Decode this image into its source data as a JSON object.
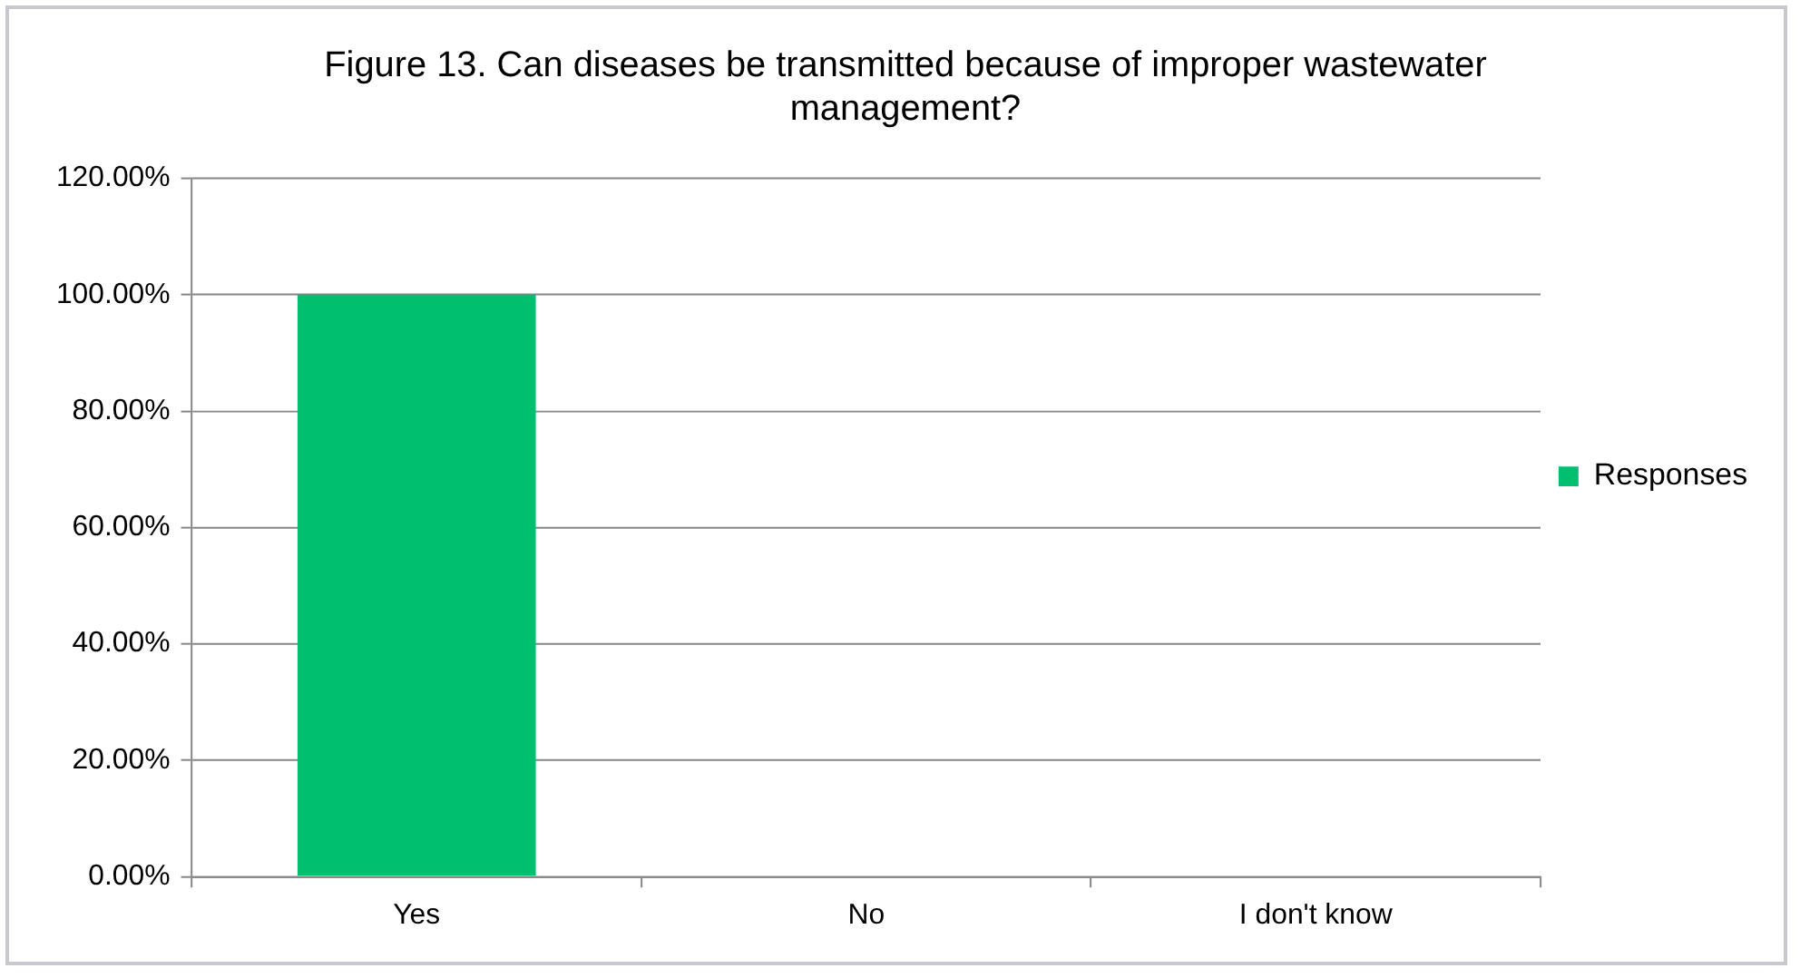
{
  "chart_data": {
    "type": "bar",
    "title": "Figure 13. Can diseases be transmitted because of improper wastewater management?",
    "categories": [
      "Yes",
      "No",
      "I don't know"
    ],
    "series": [
      {
        "name": "Responses",
        "color": "#00bf6f",
        "values": [
          100,
          0,
          0
        ]
      }
    ],
    "ylim": [
      0,
      120
    ],
    "yticks": [
      {
        "value": 0,
        "label": "0.00%"
      },
      {
        "value": 20,
        "label": "20.00%"
      },
      {
        "value": 40,
        "label": "40.00%"
      },
      {
        "value": 60,
        "label": "60.00%"
      },
      {
        "value": 80,
        "label": "80.00%"
      },
      {
        "value": 100,
        "label": "100.00%"
      },
      {
        "value": 120,
        "label": "120.00%"
      }
    ],
    "grid": "y",
    "legend": "right"
  }
}
